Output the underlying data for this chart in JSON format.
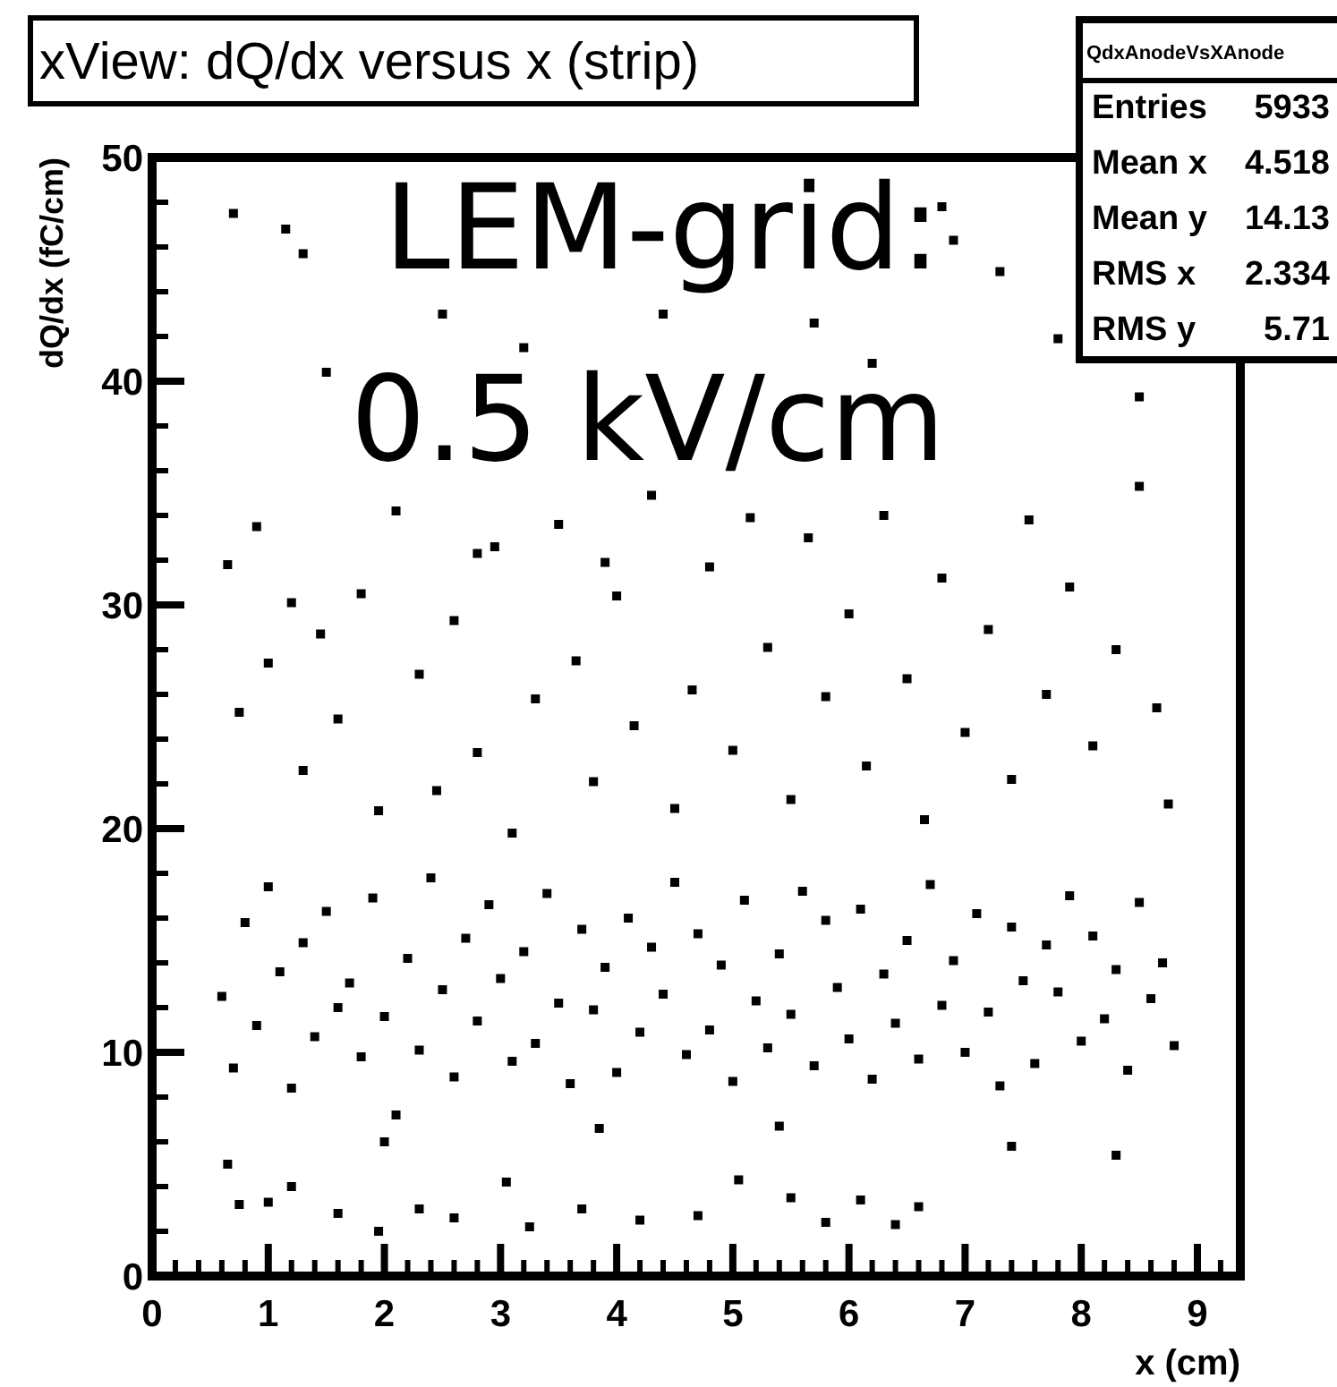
{
  "chart_data": {
    "type": "scatter",
    "title": "xView: dQ/dx versus x (strip)",
    "xlabel": "x (cm)",
    "ylabel": "dQ/dx (fC/cm)",
    "annotations": [
      "LEM-grid:",
      "0.5 kV/cm",
      "QdxAnodeVsXAnode",
      "Entries   5933",
      "Mean x  4.518",
      "Mean y  14.13",
      "RMS x   2.334",
      "RMS y     5.71"
    ],
    "xlim": [
      0,
      9.37
    ],
    "xticks": [
      0,
      1,
      2,
      3,
      4,
      5,
      6,
      7,
      8,
      9
    ],
    "ylim": [
      0,
      50
    ],
    "yticks": [
      0,
      10,
      20,
      30,
      40,
      50
    ],
    "marker": "square",
    "grid": false,
    "series": [
      {
        "color": "#000000",
        "x": [
          0.6,
          0.7,
          0.8,
          0.9,
          1.0,
          1.1,
          1.2,
          1.3,
          1.4,
          1.5,
          1.6,
          1.7,
          1.8,
          1.9,
          2.0,
          2.1,
          2.2,
          2.3,
          2.4,
          2.5,
          2.6,
          2.7,
          2.8,
          2.9,
          3.0,
          3.1,
          3.2,
          3.3,
          3.4,
          3.5,
          3.6,
          3.7,
          3.8,
          3.9,
          4.0,
          4.1,
          4.2,
          4.3,
          4.4,
          4.5,
          4.6,
          4.7,
          4.8,
          4.9,
          5.0,
          5.1,
          5.2,
          5.3,
          5.4,
          5.5,
          5.6,
          5.7,
          5.8,
          5.9,
          6.0,
          6.1,
          6.2,
          6.3,
          6.4,
          6.5,
          6.6,
          6.7,
          6.8,
          6.9,
          7.0,
          7.1,
          7.2,
          7.3,
          7.4,
          7.5,
          7.6,
          7.7,
          7.8,
          7.9,
          8.0,
          8.1,
          8.2,
          8.3,
          8.4,
          8.5,
          8.6,
          8.7,
          8.8,
          0.65,
          0.75,
          0.9,
          1.0,
          1.2,
          1.3,
          1.45,
          1.6,
          1.8,
          1.95,
          2.1,
          2.3,
          2.45,
          2.6,
          2.8,
          2.95,
          3.1,
          3.3,
          3.5,
          3.65,
          3.8,
          4.0,
          4.15,
          4.3,
          4.5,
          4.65,
          4.8,
          5.0,
          5.15,
          5.3,
          5.5,
          5.65,
          5.8,
          6.0,
          6.15,
          6.3,
          6.5,
          6.65,
          6.8,
          7.0,
          7.2,
          7.4,
          7.55,
          7.7,
          7.9,
          8.1,
          8.3,
          8.5,
          8.65,
          8.75,
          0.7,
          1.15,
          1.3,
          2.5,
          3.2,
          3.9,
          4.4,
          6.9,
          5.7,
          6.2,
          6.8,
          7.3,
          7.8,
          8.5,
          1.5,
          2.8,
          0.65,
          0.75,
          1.0,
          1.2,
          1.6,
          1.95,
          2.3,
          2.6,
          3.05,
          3.25,
          3.7,
          4.2,
          4.7,
          5.05,
          5.5,
          5.8,
          6.1,
          6.4,
          6.6,
          7.4,
          8.3,
          2.0,
          3.85,
          5.4
        ],
        "values": [
          12.5,
          9.3,
          15.8,
          11.2,
          17.4,
          13.6,
          8.4,
          14.9,
          10.7,
          16.3,
          12.0,
          13.1,
          9.8,
          16.9,
          11.6,
          7.2,
          14.2,
          10.1,
          17.8,
          12.8,
          8.9,
          15.1,
          11.4,
          16.6,
          13.3,
          9.6,
          14.5,
          10.4,
          17.1,
          12.2,
          8.6,
          15.5,
          11.9,
          13.8,
          9.1,
          16.0,
          10.9,
          14.7,
          12.6,
          17.6,
          9.9,
          15.3,
          11.0,
          13.9,
          8.7,
          16.8,
          12.3,
          10.2,
          14.4,
          11.7,
          17.2,
          9.4,
          15.9,
          12.9,
          10.6,
          16.4,
          8.8,
          13.5,
          11.3,
          15.0,
          9.7,
          17.5,
          12.1,
          14.1,
          10.0,
          16.2,
          11.8,
          8.5,
          15.6,
          13.2,
          9.5,
          14.8,
          12.7,
          17.0,
          10.5,
          15.2,
          11.5,
          13.7,
          9.2,
          16.7,
          12.4,
          14.0,
          10.3,
          31.8,
          25.2,
          33.5,
          27.4,
          30.1,
          22.6,
          28.7,
          24.9,
          30.5,
          20.8,
          34.2,
          26.9,
          21.7,
          29.3,
          23.4,
          32.6,
          19.8,
          25.8,
          33.6,
          27.5,
          22.1,
          30.4,
          24.6,
          34.9,
          20.9,
          26.2,
          31.7,
          23.5,
          33.9,
          28.1,
          21.3,
          33.0,
          25.9,
          29.6,
          22.8,
          34.0,
          26.7,
          20.4,
          31.2,
          24.3,
          28.9,
          22.2,
          33.8,
          26.0,
          30.8,
          23.7,
          28.0,
          35.3,
          25.4,
          21.1,
          47.5,
          46.8,
          45.7,
          43.0,
          41.5,
          31.9,
          43.0,
          46.3,
          42.6,
          40.8,
          47.8,
          44.9,
          41.9,
          39.3,
          40.4,
          32.3,
          5.0,
          3.2,
          3.3,
          4.0,
          2.8,
          2.0,
          3.0,
          2.6,
          4.2,
          2.2,
          3.0,
          2.5,
          2.7,
          4.3,
          3.5,
          2.4,
          3.4,
          2.3,
          3.1,
          5.8,
          5.4,
          6.0,
          6.6,
          6.7
        ]
      }
    ]
  }
}
